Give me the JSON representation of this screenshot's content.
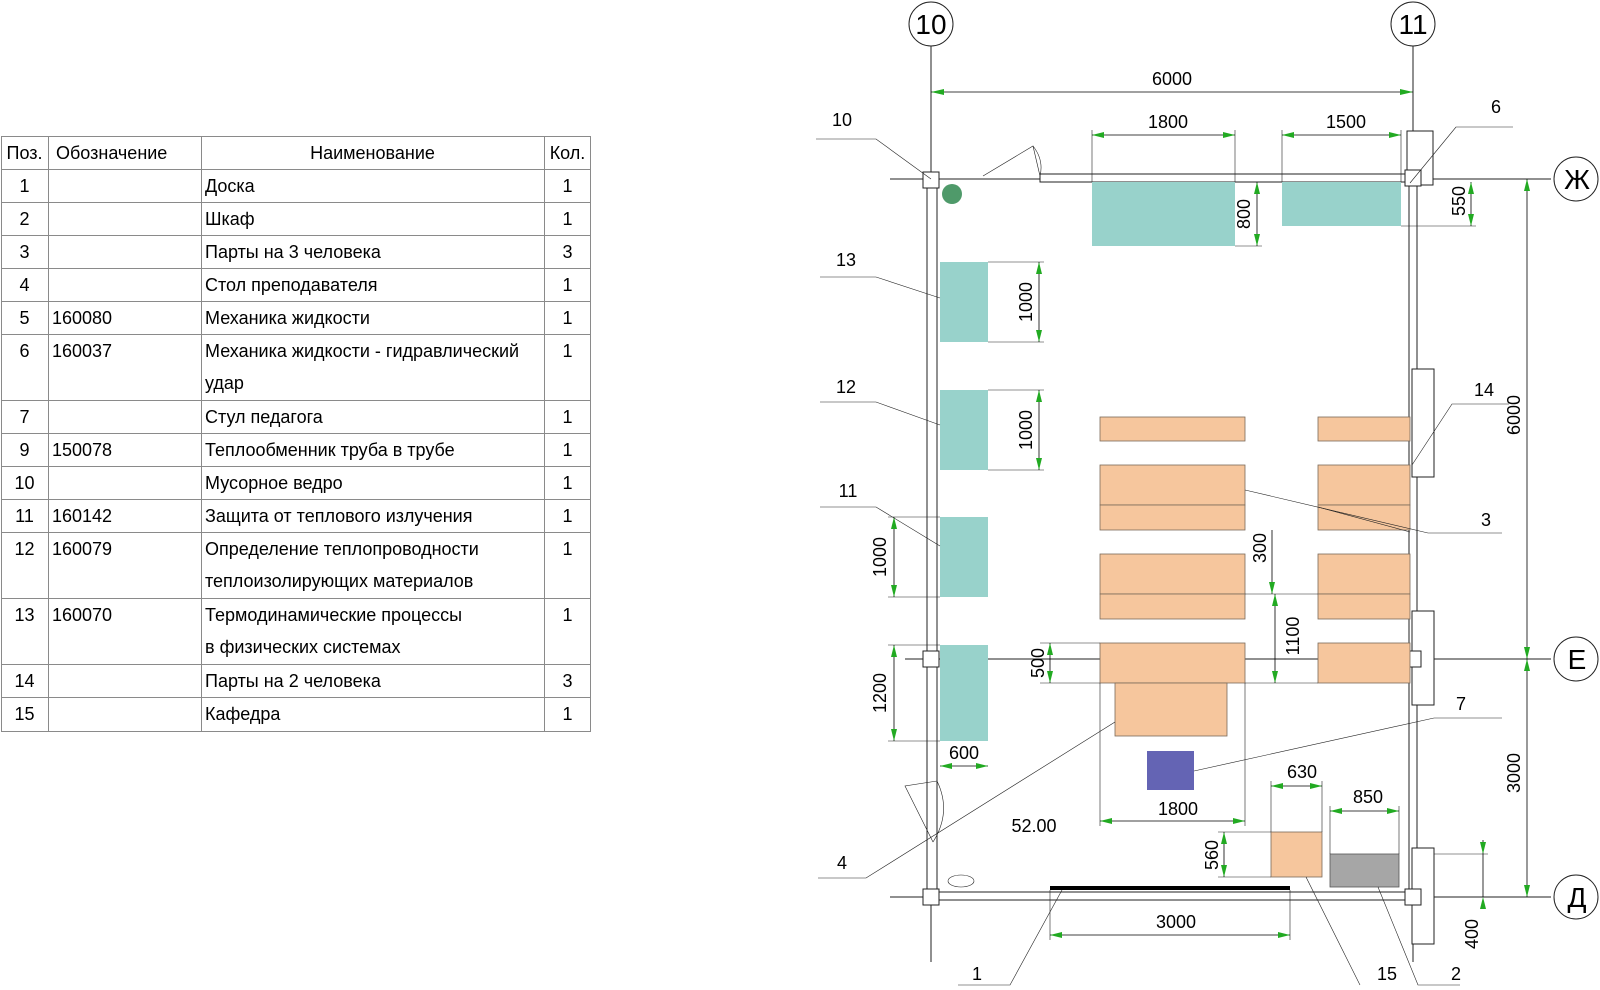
{
  "spec_table": {
    "headers": {
      "pos": "Поз.",
      "code": "Обозначение",
      "name": "Наименование",
      "qty": "Кол."
    },
    "rows": [
      {
        "pos": "1",
        "code": "",
        "name": "Доска",
        "name2": "",
        "qty": "1"
      },
      {
        "pos": "2",
        "code": "",
        "name": "Шкаф",
        "name2": "",
        "qty": "1"
      },
      {
        "pos": "3",
        "code": "",
        "name": "Парты  на 3 человека",
        "name2": "",
        "qty": "3"
      },
      {
        "pos": "4",
        "code": "",
        "name": "Стол преподавателя",
        "name2": "",
        "qty": "1"
      },
      {
        "pos": "5",
        "code": "160080",
        "name": "Механика жидкости",
        "name2": "",
        "qty": "1"
      },
      {
        "pos": "6",
        "code": "160037",
        "name": "Механика жидкости - гидравлический",
        "name2": " удар",
        "qty": "1"
      },
      {
        "pos": "7",
        "code": "",
        "name": "Стул педагога",
        "name2": "",
        "qty": "1"
      },
      {
        "pos": "9",
        "code": "150078",
        "name": " Теплообменник труба в трубе",
        "name2": "",
        "qty": "1"
      },
      {
        "pos": "10",
        "code": "",
        "name": "Мусорное ведро",
        "name2": "",
        "qty": "1"
      },
      {
        "pos": "11",
        "code": "160142",
        "name": "Защита от теплового излучения",
        "name2": "",
        "qty": "1"
      },
      {
        "pos": "12",
        "code": "160079",
        "name": "Определение теплопроводности",
        "name2": "теплоизолирующих материалов",
        "qty": "1"
      },
      {
        "pos": "13",
        "code": "160070",
        "name": "Термодинамические процессы",
        "name2": "в физических системах",
        "qty": "1"
      },
      {
        "pos": "14",
        "code": "",
        "name": "Парты на 2 человека",
        "name2": "",
        "qty": "3"
      },
      {
        "pos": "15",
        "code": "",
        "name": "Кафедра",
        "name2": "",
        "qty": "1"
      }
    ]
  },
  "plan": {
    "axes": {
      "left": "10",
      "right": "11",
      "top": "Ж",
      "middle": "Е",
      "bottom": "Д"
    },
    "dimensions": {
      "total_width": "6000",
      "shelf_a_width": "1800",
      "shelf_b_width": "1500",
      "shelf_a_depth": "800",
      "shelf_b_depth": "550",
      "stand_13": "1000",
      "stand_12": "1000",
      "stand_11": "1000",
      "stand_5": "1200",
      "stand_depth": "600",
      "desk_gap": "300",
      "desk_pitch": "1100",
      "desk_depth": "500",
      "desk_width": "1800",
      "elevation": "52.00",
      "lectern_width": "630",
      "lectern_depth": "560",
      "cabinet_width": "850",
      "board_width": "3000",
      "wall_offset": "400",
      "room_depth_total": "6000",
      "room_depth_front": "3000"
    },
    "callouts": {
      "c10": "10",
      "c6": "6",
      "c13": "13",
      "c12": "12",
      "c14": "14",
      "c11": "11",
      "c3": "3",
      "c7": "7",
      "c4": "4",
      "c1": "1",
      "c15": "15",
      "c2": "2"
    },
    "colors": {
      "lab_stand": "#98d2cb",
      "desk": "#f6c69d",
      "chair": "#6464b4",
      "cabinet": "#a6a6a6",
      "bin": "#4f9a6a",
      "arrow": "#22aa22"
    }
  }
}
